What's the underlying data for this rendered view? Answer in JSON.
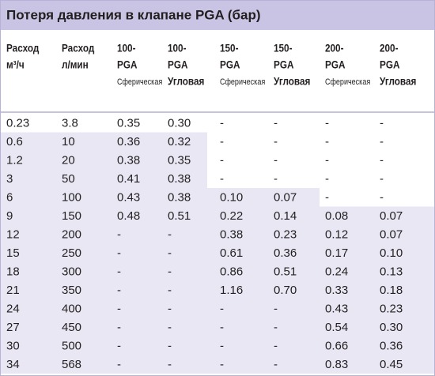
{
  "title": "Потеря давления в клапане PGA (бар)",
  "header": [
    [
      "Расход",
      "м³/ч"
    ],
    [
      "Расход",
      "л/мин"
    ],
    [
      "100-",
      "PGA",
      "Сферическая"
    ],
    [
      "100-",
      "PGA",
      "Угловая"
    ],
    [
      "150-",
      "PGA",
      "Сферическая"
    ],
    [
      "150-",
      "PGA",
      "Угловая"
    ],
    [
      "200-",
      "PGA",
      "Сферическая"
    ],
    [
      "200-",
      "PGA",
      "Угловая"
    ]
  ],
  "rows": [
    [
      "0.23",
      "3.8",
      "0.35",
      "0.30",
      "-",
      "-",
      "-",
      "-"
    ],
    [
      "0.6",
      "10",
      "0.36",
      "0.32",
      "-",
      "-",
      "-",
      "-"
    ],
    [
      "1.2",
      "20",
      "0.38",
      "0.35",
      "-",
      "-",
      "-",
      "-"
    ],
    [
      "3",
      "50",
      "0.41",
      "0.38",
      "-",
      "-",
      "-",
      "-"
    ],
    [
      "6",
      "100",
      "0.43",
      "0.38",
      "0.10",
      "0.07",
      "-",
      "-"
    ],
    [
      "9",
      "150",
      "0.48",
      "0.51",
      "0.22",
      "0.14",
      "0.08",
      "0.07"
    ],
    [
      "12",
      "200",
      "-",
      "-",
      "0.38",
      "0.23",
      "0.12",
      "0.07"
    ],
    [
      "15",
      "250",
      "-",
      "-",
      "0.61",
      "0.36",
      "0.17",
      "0.10"
    ],
    [
      "18",
      "300",
      "-",
      "-",
      "0.86",
      "0.51",
      "0.24",
      "0.13"
    ],
    [
      "21",
      "350",
      "-",
      "-",
      "1.16",
      "0.70",
      "0.33",
      "0.18"
    ],
    [
      "24",
      "400",
      "-",
      "-",
      "-",
      "-",
      "0.43",
      "0.23"
    ],
    [
      "27",
      "450",
      "-",
      "-",
      "-",
      "-",
      "0.54",
      "0.30"
    ],
    [
      "30",
      "500",
      "-",
      "-",
      "-",
      "-",
      "0.66",
      "0.36"
    ],
    [
      "34",
      "568",
      "-",
      "-",
      "-",
      "-",
      "0.83",
      "0.45"
    ]
  ]
}
